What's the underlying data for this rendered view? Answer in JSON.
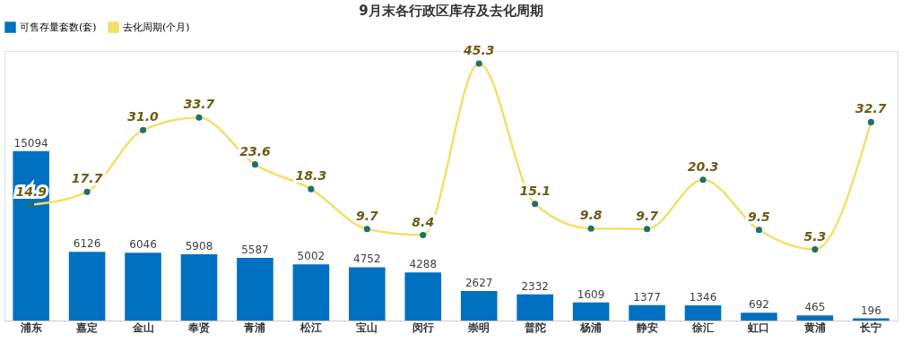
{
  "chart_data": {
    "type": "bar",
    "title": "9月末各行政区库存及去化周期",
    "categories": [
      "浦东",
      "嘉定",
      "金山",
      "奉贤",
      "青浦",
      "松江",
      "宝山",
      "闵行",
      "崇明",
      "普陀",
      "杨浦",
      "静安",
      "徐汇",
      "虹口",
      "黄浦",
      "长宁"
    ],
    "series": [
      {
        "name": "可售存量套数(套)",
        "color": "#0070c0",
        "values": [
          15094,
          6126,
          6046,
          5908,
          5587,
          5002,
          4752,
          4288,
          2627,
          2332,
          1609,
          1377,
          1346,
          692,
          465,
          196
        ]
      },
      {
        "name": "去化周期(个月)",
        "type": "line",
        "axis": "y2",
        "color": "#f2e06a",
        "values": [
          14.9,
          17.7,
          31.0,
          33.7,
          23.6,
          18.3,
          9.7,
          8.4,
          45.3,
          15.1,
          9.8,
          9.7,
          20.3,
          9.5,
          5.3,
          32.7
        ],
        "value_labels": [
          "14.9",
          "17.7",
          "31.0",
          "33.7",
          "23.6",
          "18.3",
          "9.7",
          "8.4",
          "45.3",
          "15.1",
          "9.8",
          "9.7",
          "20.3",
          "9.5",
          "5.3",
          "32.7"
        ]
      }
    ],
    "ylim": [
      0,
      24000
    ],
    "y2lim": [
      -10,
      48
    ],
    "data_labels": true,
    "tick_labels": "x",
    "legend": "top",
    "grid": false,
    "marker": "circle"
  }
}
